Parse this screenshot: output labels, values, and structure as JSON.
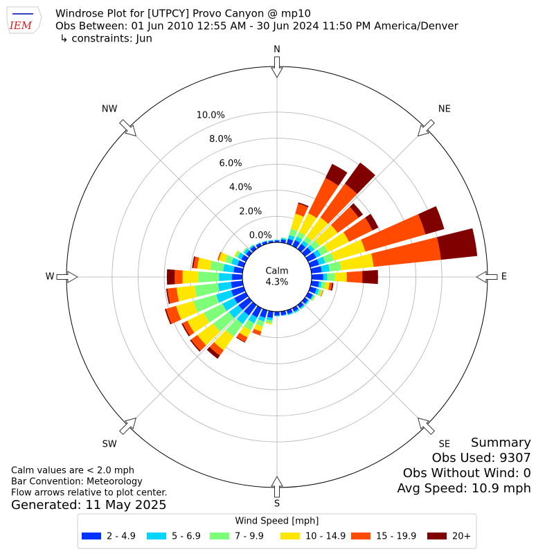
{
  "logo": "IEM",
  "chart_data": {
    "type": "windrose",
    "title": "Windrose Plot for [UTPCY] Provo Canyon @ mp10",
    "subtitle": "Obs Between: 01 Jun 2010 12:55 AM - 30 Jun 2024 11:50 PM America/Denver",
    "constraints": "↳ constraints: Jun",
    "calm": {
      "label": "Calm",
      "value": "4.3%"
    },
    "x": [
      0,
      10,
      20,
      30,
      40,
      50,
      60,
      70,
      80,
      90,
      100,
      110,
      120,
      130,
      140,
      150,
      160,
      170,
      180,
      190,
      200,
      210,
      220,
      230,
      240,
      250,
      260,
      270,
      280,
      290,
      300,
      310,
      320,
      330,
      340,
      350
    ],
    "xticks": [
      {
        "value": 0,
        "label": "N"
      },
      {
        "value": 45,
        "label": "NE"
      },
      {
        "value": 90,
        "label": "E"
      },
      {
        "value": 135,
        "label": "SE"
      },
      {
        "value": 180,
        "label": "S"
      },
      {
        "value": 225,
        "label": "SW"
      },
      {
        "value": 270,
        "label": "W"
      },
      {
        "value": 315,
        "label": "NW"
      }
    ],
    "ylim": [
      0,
      13.5
    ],
    "yticks": [
      {
        "value": 0,
        "label": "0.0%"
      },
      {
        "value": 2,
        "label": "2.0%"
      },
      {
        "value": 4,
        "label": "4.0%"
      },
      {
        "value": 6,
        "label": "6.0%"
      },
      {
        "value": 8,
        "label": "8.0%"
      },
      {
        "value": 10,
        "label": "10.0%"
      }
    ],
    "grid": true,
    "legend_title": "Wind Speed [mph]",
    "series": [
      {
        "name": "2 - 4.9",
        "color": "#0033ff",
        "values": [
          0.15,
          0.25,
          0.4,
          0.5,
          0.5,
          0.6,
          0.7,
          0.7,
          0.8,
          0.9,
          0.6,
          0.5,
          0.4,
          0.3,
          0.3,
          0.3,
          0.3,
          0.3,
          0.3,
          0.5,
          0.6,
          0.8,
          1.0,
          1.0,
          1.0,
          1.0,
          0.9,
          0.8,
          0.7,
          0.5,
          0.4,
          0.3,
          0.3,
          0.25,
          0.2,
          0.15
        ]
      },
      {
        "name": "5 - 6.9",
        "color": "#00d4ff",
        "values": [
          0.05,
          0.1,
          0.3,
          0.3,
          0.3,
          0.3,
          0.4,
          0.5,
          0.6,
          0.3,
          0.2,
          0.2,
          0.1,
          0.1,
          0.1,
          0.1,
          0.1,
          0.05,
          0.05,
          0.2,
          0.3,
          0.5,
          0.8,
          0.9,
          1.0,
          1.2,
          1.0,
          1.0,
          0.8,
          0.5,
          0.3,
          0.2,
          0.1,
          0.05,
          0.05,
          0.05
        ]
      },
      {
        "name": "7 - 9.9",
        "color": "#7dff7a",
        "values": [
          0,
          0.05,
          0.5,
          0.4,
          0.4,
          0.5,
          0.6,
          0.7,
          0.9,
          0.6,
          0.3,
          0.2,
          0.1,
          0.05,
          0.05,
          0.05,
          0,
          0,
          0,
          0.2,
          0.4,
          0.6,
          1.2,
          1.5,
          1.6,
          1.8,
          1.8,
          1.6,
          1.0,
          0.5,
          0.2,
          0.1,
          0.05,
          0,
          0,
          0
        ]
      },
      {
        "name": "10 - 14.9",
        "color": "#ffe600",
        "values": [
          0,
          0,
          1.2,
          1.6,
          1.8,
          1.7,
          1.8,
          2.5,
          2.5,
          0.9,
          0.3,
          0.1,
          0.05,
          0,
          0,
          0,
          0,
          0,
          0,
          0.1,
          0.4,
          0.6,
          1.3,
          1.5,
          1.4,
          1.4,
          1.4,
          1.2,
          1.0,
          0.5,
          0.1,
          0,
          0,
          0,
          0,
          0
        ]
      },
      {
        "name": "15 - 19.9",
        "color": "#ff4a00",
        "values": [
          0,
          0,
          0.8,
          3.0,
          3.2,
          2.0,
          2.0,
          4.8,
          5.2,
          1.2,
          0.2,
          0.05,
          0,
          0,
          0,
          0,
          0,
          0,
          0,
          0,
          0.3,
          0.4,
          0.5,
          0.6,
          0.4,
          0.8,
          0.7,
          0.6,
          0.3,
          0.1,
          0,
          0,
          0,
          0,
          0,
          0
        ]
      },
      {
        "name": "20+",
        "color": "#800000",
        "values": [
          0,
          0,
          0.1,
          1.2,
          2.0,
          0.4,
          0.5,
          1.5,
          2.8,
          1.2,
          0.1,
          0,
          0,
          0,
          0,
          0,
          0,
          0,
          0,
          0,
          0,
          0.05,
          0.3,
          0.1,
          0.1,
          0.1,
          0.1,
          0.6,
          0.1,
          0,
          0,
          0,
          0,
          0,
          0,
          0
        ]
      }
    ],
    "summary": [
      "Summary",
      "Obs Used: 9307",
      "Obs Without Wind: 0",
      "Avg Speed: 10.9 mph"
    ],
    "notes": [
      "Calm values are < 2.0 mph",
      "Bar Convention: Meteorology",
      "Flow arrows relative to plot center."
    ],
    "generated": "Generated: 11 May 2025"
  }
}
